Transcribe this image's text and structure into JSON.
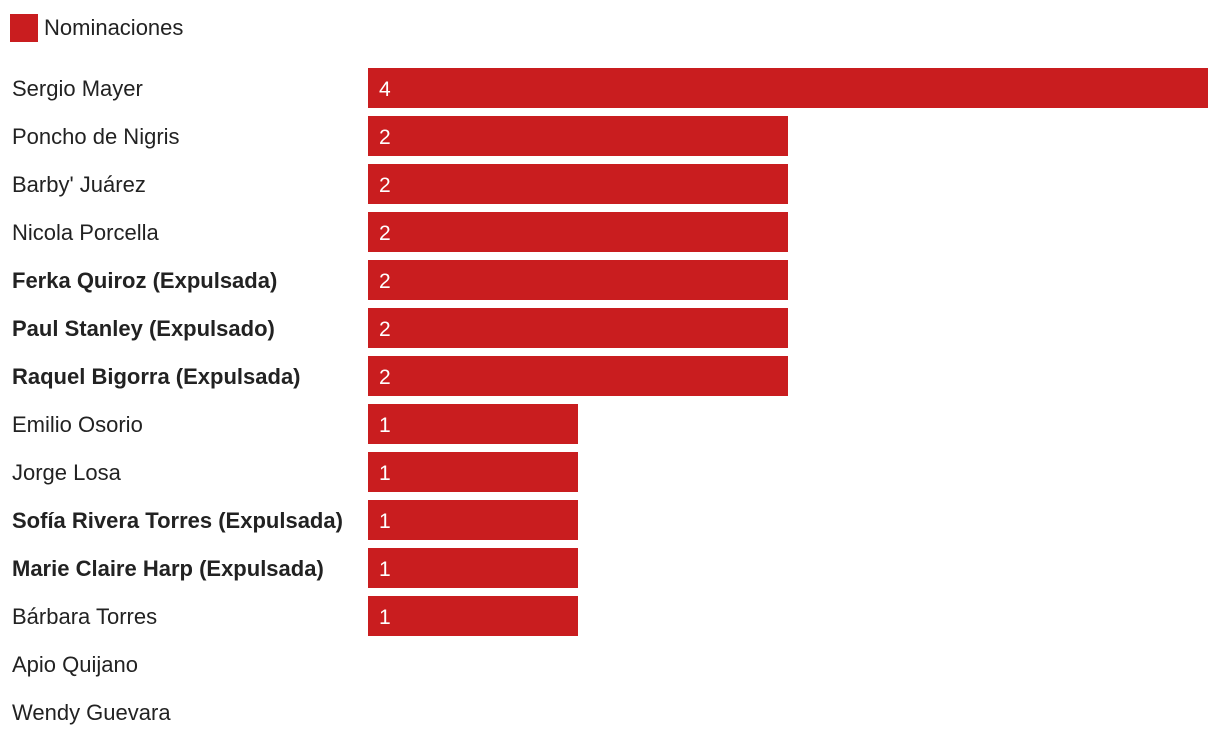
{
  "colors": {
    "bar": "#c91d1f",
    "text": "#222222",
    "value_text": "#ffffff"
  },
  "legend": {
    "label": "Nominaciones",
    "placement": "top-left"
  },
  "chart_data": {
    "type": "bar",
    "orientation": "horizontal",
    "title": "",
    "xlabel": "",
    "ylabel": "",
    "xlim": [
      0,
      4
    ],
    "grid": false,
    "categories": [
      "Sergio Mayer",
      "Poncho de Nigris",
      "Barby' Juárez",
      "Nicola Porcella",
      "Ferka Quiroz (Expulsada)",
      "Paul Stanley (Expulsado)",
      "Raquel Bigorra (Expulsada)",
      "Emilio Osorio",
      "Jorge Losa",
      "Sofía Rivera Torres (Expulsada)",
      "Marie Claire Harp (Expulsada)",
      "Bárbara Torres",
      "Apio Quijano",
      "Wendy Guevara"
    ],
    "bold_categories": [
      "Ferka Quiroz (Expulsada)",
      "Paul Stanley (Expulsado)",
      "Raquel Bigorra (Expulsada)",
      "Sofía Rivera Torres (Expulsada)",
      "Marie Claire Harp (Expulsada)"
    ],
    "series": [
      {
        "name": "Nominaciones",
        "values": [
          4,
          2,
          2,
          2,
          2,
          2,
          2,
          1,
          1,
          1,
          1,
          1,
          0,
          0
        ]
      }
    ]
  }
}
